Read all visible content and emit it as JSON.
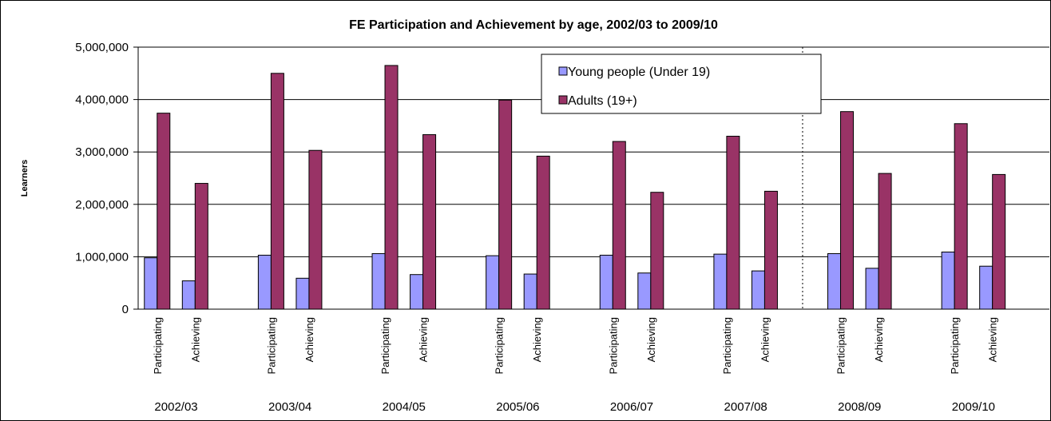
{
  "chart_data": {
    "type": "bar",
    "title": "FE Participation and Achievement by age, 2002/03 to 2009/10",
    "ylabel": "Learners",
    "xlabel": "",
    "ylim": [
      0,
      5000000
    ],
    "y_ticks": [
      "0",
      "1,000,000",
      "2,000,000",
      "3,000,000",
      "4,000,000",
      "5,000,000"
    ],
    "grid": true,
    "legend_position": "top-center",
    "groups": [
      "2002/03",
      "2003/04",
      "2004/05",
      "2005/06",
      "2006/07",
      "2007/08",
      "2008/09",
      "2009/10"
    ],
    "subcategories": [
      "Participating",
      "Achieving"
    ],
    "divider_before_group": "2008/09",
    "series": [
      {
        "name": "Young people (Under 19)",
        "color": "#9999ff",
        "values": [
          [
            980000,
            540000
          ],
          [
            1030000,
            590000
          ],
          [
            1060000,
            660000
          ],
          [
            1020000,
            670000
          ],
          [
            1030000,
            690000
          ],
          [
            1050000,
            730000
          ],
          [
            1060000,
            780000
          ],
          [
            1090000,
            820000
          ]
        ]
      },
      {
        "name": "Adults (19+)",
        "color": "#993366",
        "values": [
          [
            3740000,
            2400000
          ],
          [
            4500000,
            3030000
          ],
          [
            4650000,
            3330000
          ],
          [
            3990000,
            2920000
          ],
          [
            3200000,
            2230000
          ],
          [
            3300000,
            2250000
          ],
          [
            3770000,
            2590000
          ],
          [
            3540000,
            2570000
          ]
        ]
      }
    ]
  }
}
